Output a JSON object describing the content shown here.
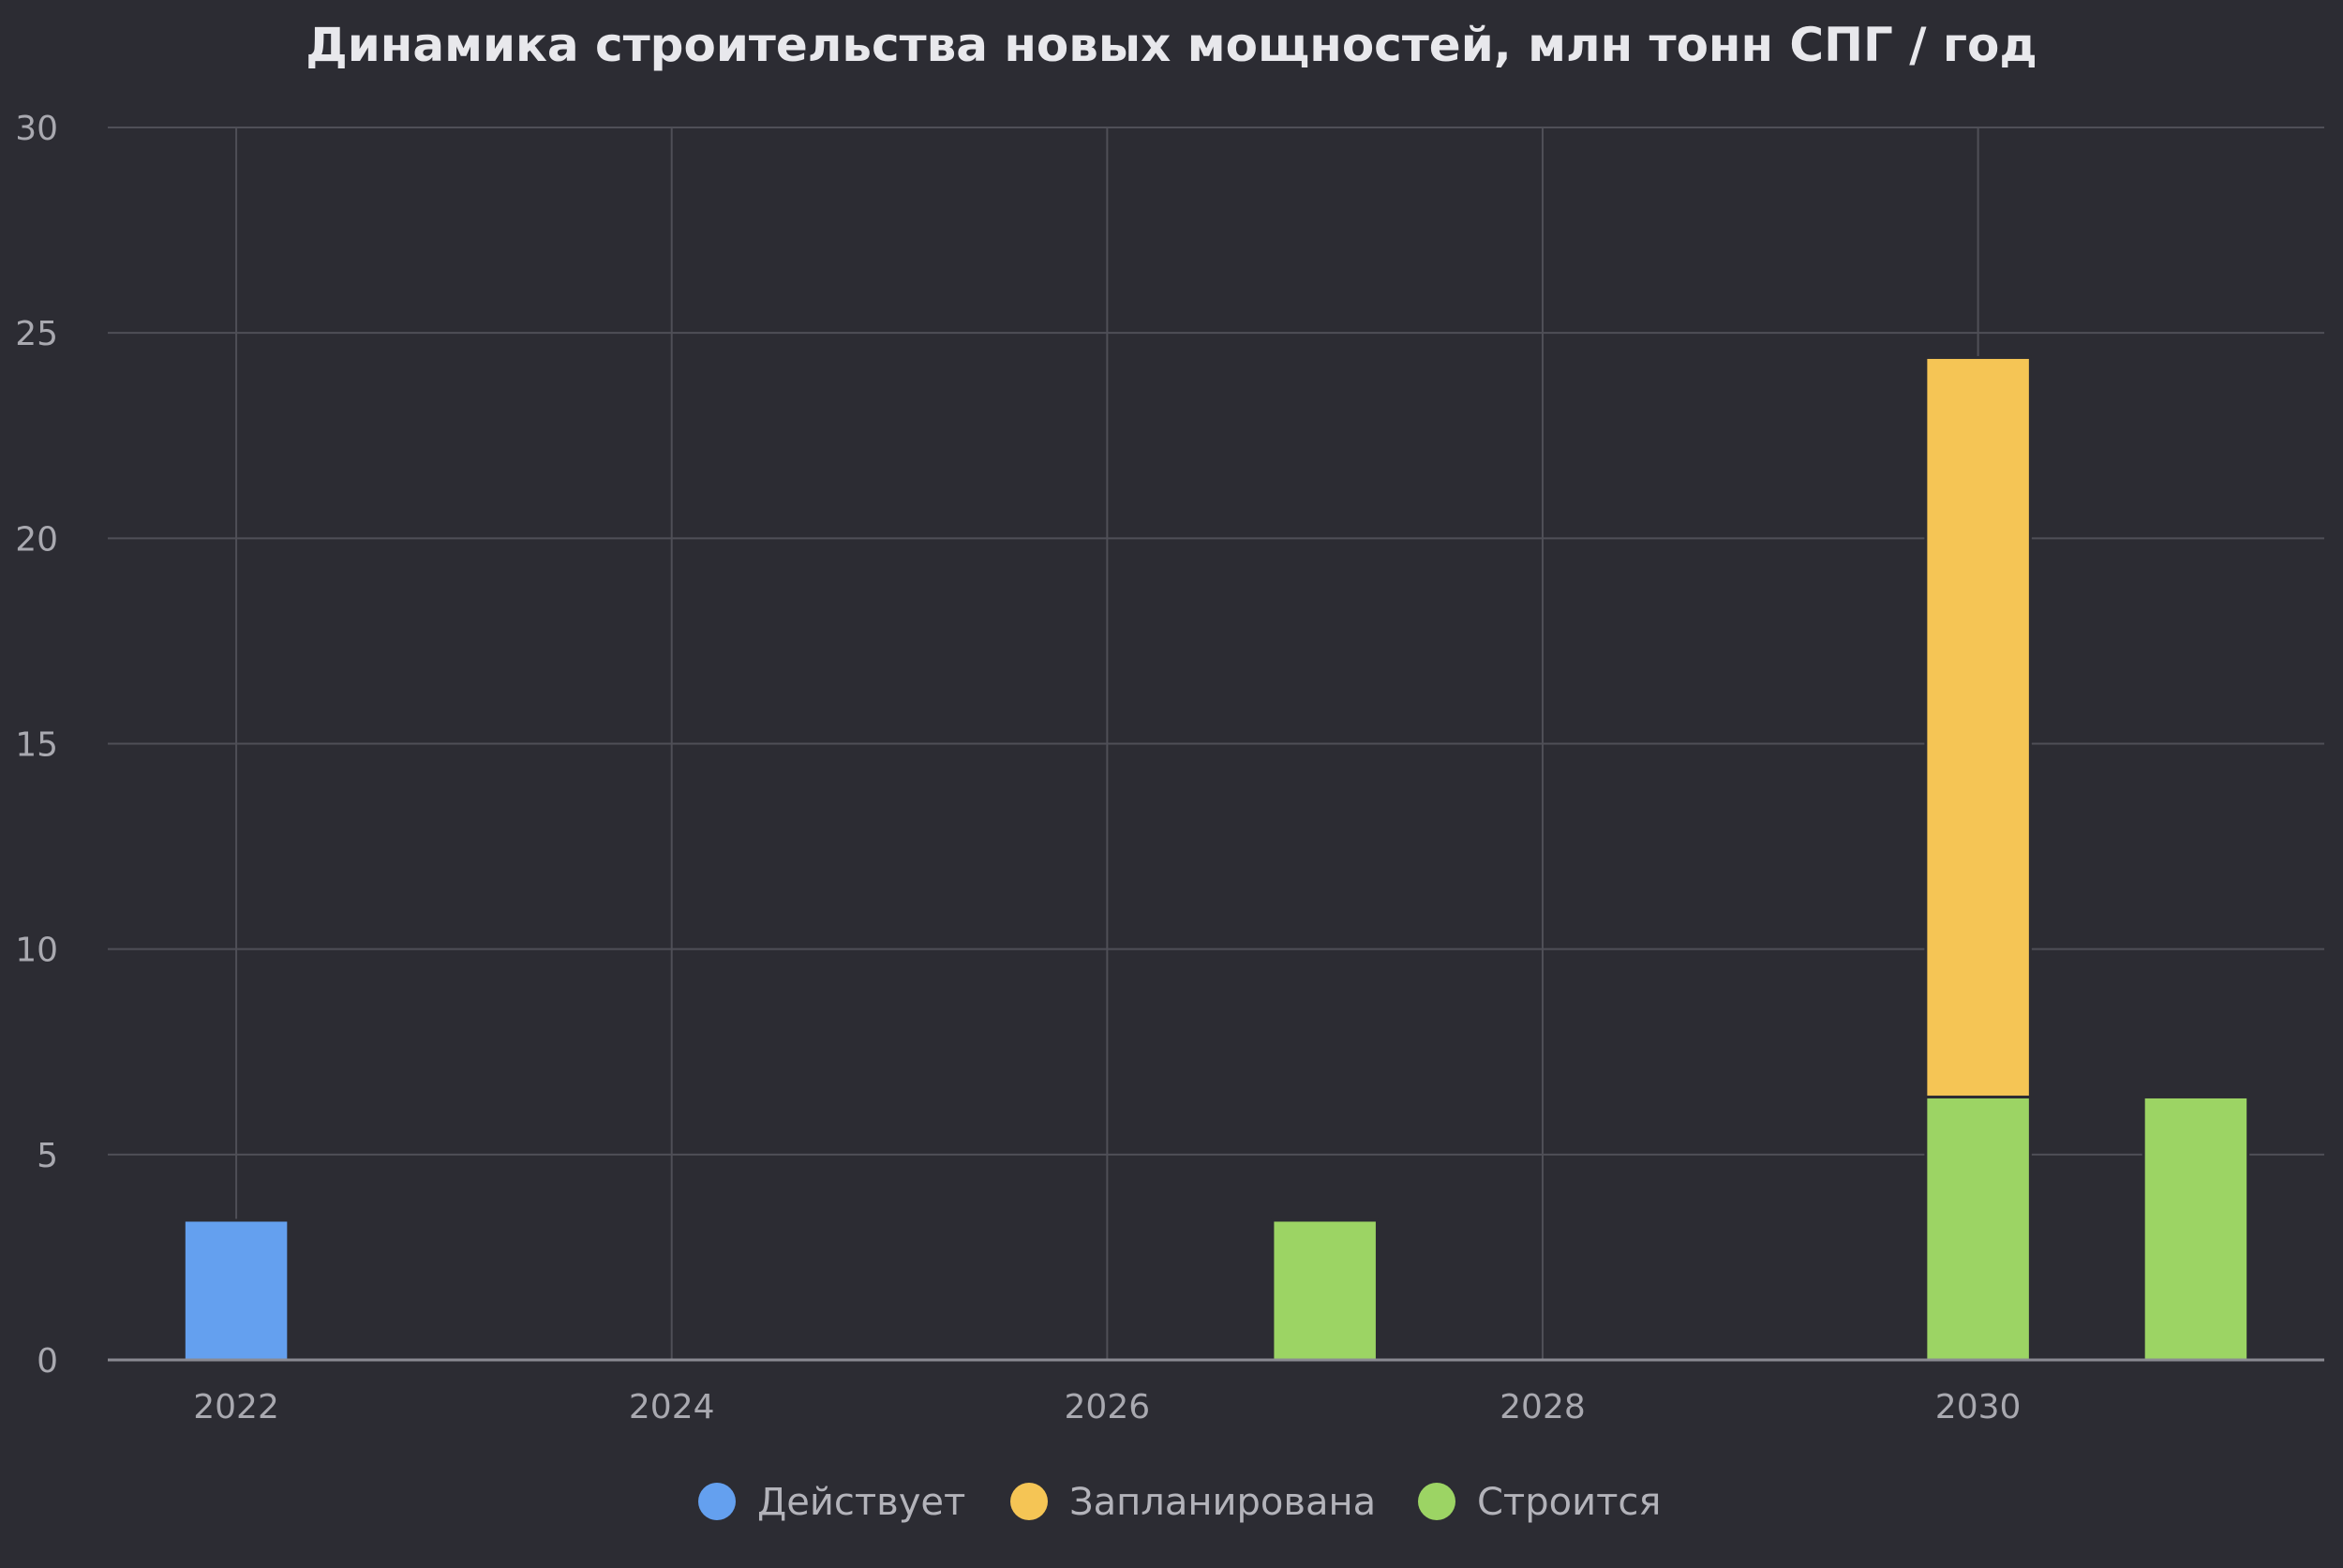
{
  "chart_data": {
    "type": "bar",
    "stacked": true,
    "title": "Динамика строительства новых мощностей, млн тонн СПГ / год",
    "xlabel": "",
    "ylabel": "",
    "xlim": [
      2021.41,
      2031.59
    ],
    "ylim": [
      0,
      30
    ],
    "x_ticks": [
      "2022",
      "2024",
      "2026",
      "2028",
      "2030"
    ],
    "y_ticks": [
      "0",
      "5",
      "10",
      "15",
      "20",
      "25",
      "30"
    ],
    "grid": true,
    "legend_position": "bottom-center",
    "series": [
      {
        "name": "Действует",
        "color": "#64a0ef",
        "points": [
          {
            "x": 2022,
            "y": 3.4
          }
        ]
      },
      {
        "name": "Строится",
        "color": "#9cd464",
        "points": [
          {
            "x": 2027,
            "y": 3.4
          },
          {
            "x": 2030,
            "y": 6.4
          },
          {
            "x": 2031,
            "y": 6.4
          }
        ]
      },
      {
        "name": "Запланирована",
        "color": "#f5c555",
        "points": [
          {
            "x": 2030,
            "y": 18.0
          }
        ]
      }
    ],
    "legend": [
      {
        "name": "Действует",
        "color": "#64a0ef"
      },
      {
        "name": "Запланирована",
        "color": "#f5c555"
      },
      {
        "name": "Строится",
        "color": "#9cd464"
      }
    ]
  }
}
